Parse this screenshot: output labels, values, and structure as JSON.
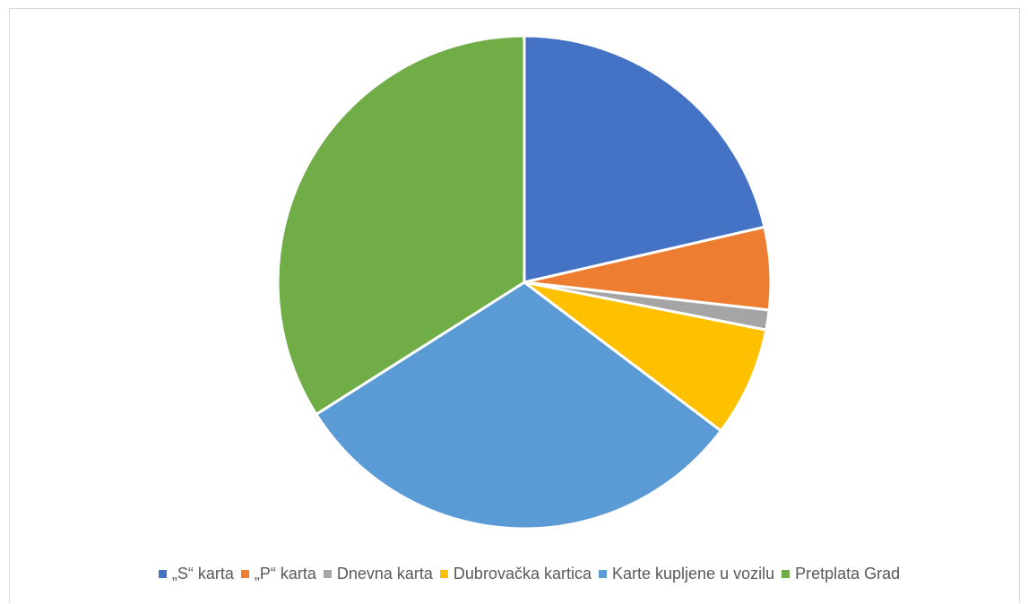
{
  "chart_data": {
    "type": "pie",
    "title": "",
    "legend_position": "bottom",
    "start_angle_deg": 0,
    "direction": "clockwise",
    "slices": [
      {
        "label": "„S“ karta",
        "value": 21.4,
        "color": "#4472C4"
      },
      {
        "label": "„P“ karta",
        "value": 5.4,
        "color": "#ED7D31"
      },
      {
        "label": "Dnevna karta",
        "value": 1.3,
        "color": "#A5A5A5"
      },
      {
        "label": "Dubrovačka kartica",
        "value": 7.2,
        "color": "#FFC000"
      },
      {
        "label": "Karte kupljene u vozilu",
        "value": 30.7,
        "color": "#5B9BD5"
      },
      {
        "label": "Pretplata Grad",
        "value": 34.0,
        "color": "#70AD47"
      }
    ]
  }
}
